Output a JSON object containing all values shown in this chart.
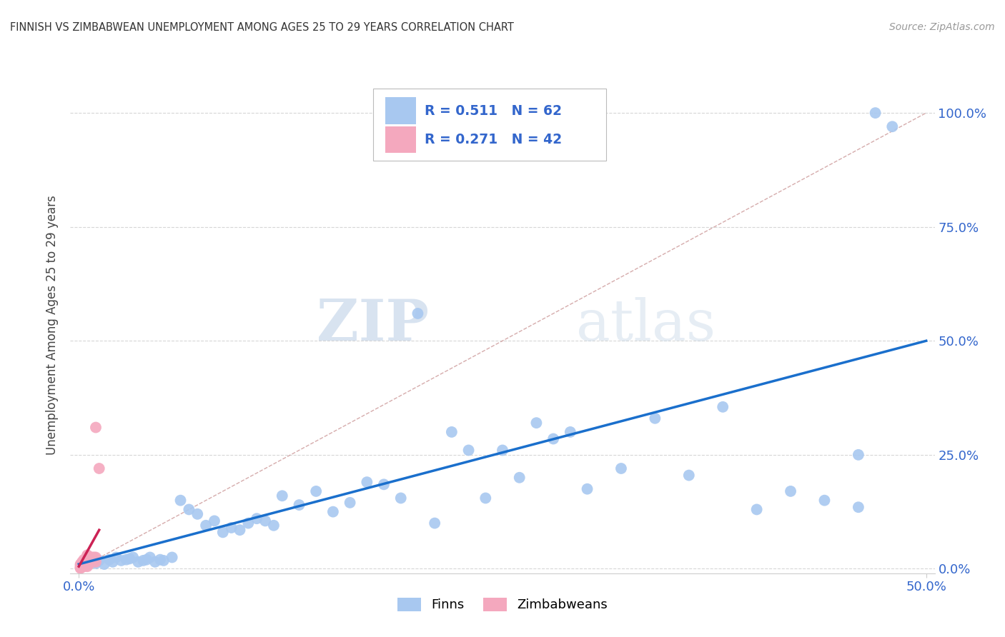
{
  "title": "FINNISH VS ZIMBABWEAN UNEMPLOYMENT AMONG AGES 25 TO 29 YEARS CORRELATION CHART",
  "source": "Source: ZipAtlas.com",
  "ylabel_label": "Unemployment Among Ages 25 to 29 years",
  "xlim": [
    -0.005,
    0.505
  ],
  "ylim": [
    -0.01,
    1.08
  ],
  "yticks": [
    0.0,
    0.25,
    0.5,
    0.75,
    1.0
  ],
  "yticklabels_right": [
    "0.0%",
    "25.0%",
    "50.0%",
    "75.0%",
    "100.0%"
  ],
  "xtick_left": 0.0,
  "xtick_right": 0.5,
  "xticklabel_left": "0.0%",
  "xticklabel_right": "50.0%",
  "finn_color": "#a8c8f0",
  "zimb_color": "#f4a8be",
  "finn_line_color": "#1a6fcc",
  "zimb_line_color": "#cc2255",
  "diagonal_color": "#c89090",
  "background_color": "#ffffff",
  "grid_color": "#cccccc",
  "tick_label_color": "#3366cc",
  "watermark_zip": "ZIP",
  "watermark_atlas": "atlas",
  "finn_x": [
    0.005,
    0.008,
    0.01,
    0.012,
    0.015,
    0.018,
    0.02,
    0.022,
    0.025,
    0.028,
    0.03,
    0.032,
    0.035,
    0.038,
    0.04,
    0.042,
    0.045,
    0.048,
    0.05,
    0.055,
    0.06,
    0.065,
    0.07,
    0.075,
    0.08,
    0.085,
    0.09,
    0.095,
    0.1,
    0.105,
    0.11,
    0.115,
    0.12,
    0.13,
    0.14,
    0.15,
    0.16,
    0.17,
    0.18,
    0.19,
    0.2,
    0.21,
    0.22,
    0.23,
    0.24,
    0.25,
    0.26,
    0.27,
    0.28,
    0.29,
    0.3,
    0.32,
    0.34,
    0.36,
    0.38,
    0.4,
    0.42,
    0.44,
    0.46,
    0.46,
    0.47,
    0.48
  ],
  "finn_y": [
    0.01,
    0.015,
    0.012,
    0.018,
    0.01,
    0.02,
    0.015,
    0.025,
    0.018,
    0.02,
    0.022,
    0.025,
    0.015,
    0.018,
    0.02,
    0.025,
    0.015,
    0.02,
    0.018,
    0.025,
    0.15,
    0.13,
    0.12,
    0.095,
    0.105,
    0.08,
    0.09,
    0.085,
    0.1,
    0.11,
    0.105,
    0.095,
    0.16,
    0.14,
    0.17,
    0.125,
    0.145,
    0.19,
    0.185,
    0.155,
    0.56,
    0.1,
    0.3,
    0.26,
    0.155,
    0.26,
    0.2,
    0.32,
    0.285,
    0.3,
    0.175,
    0.22,
    0.33,
    0.205,
    0.355,
    0.13,
    0.17,
    0.15,
    0.135,
    0.25,
    1.0,
    0.97
  ],
  "zimb_x": [
    0.001,
    0.001,
    0.001,
    0.001,
    0.001,
    0.001,
    0.002,
    0.002,
    0.002,
    0.002,
    0.002,
    0.003,
    0.003,
    0.003,
    0.003,
    0.004,
    0.004,
    0.004,
    0.005,
    0.005,
    0.005,
    0.005,
    0.005,
    0.005,
    0.005,
    0.005,
    0.005,
    0.005,
    0.006,
    0.006,
    0.006,
    0.007,
    0.007,
    0.007,
    0.008,
    0.008,
    0.009,
    0.009,
    0.01,
    0.01,
    0.01,
    0.012
  ],
  "zimb_y": [
    0.001,
    0.002,
    0.003,
    0.005,
    0.008,
    0.01,
    0.005,
    0.008,
    0.01,
    0.012,
    0.015,
    0.005,
    0.01,
    0.015,
    0.02,
    0.01,
    0.015,
    0.02,
    0.005,
    0.008,
    0.01,
    0.012,
    0.015,
    0.018,
    0.02,
    0.025,
    0.028,
    0.03,
    0.01,
    0.015,
    0.02,
    0.015,
    0.02,
    0.025,
    0.02,
    0.025,
    0.02,
    0.025,
    0.015,
    0.025,
    0.31,
    0.22
  ],
  "finn_line_x": [
    0.0,
    0.5
  ],
  "finn_line_y_start": 0.01,
  "finn_line_y_end": 0.5,
  "zimb_line_x": [
    0.0,
    0.012
  ],
  "zimb_line_y_start": 0.005,
  "zimb_line_y_end": 0.085
}
